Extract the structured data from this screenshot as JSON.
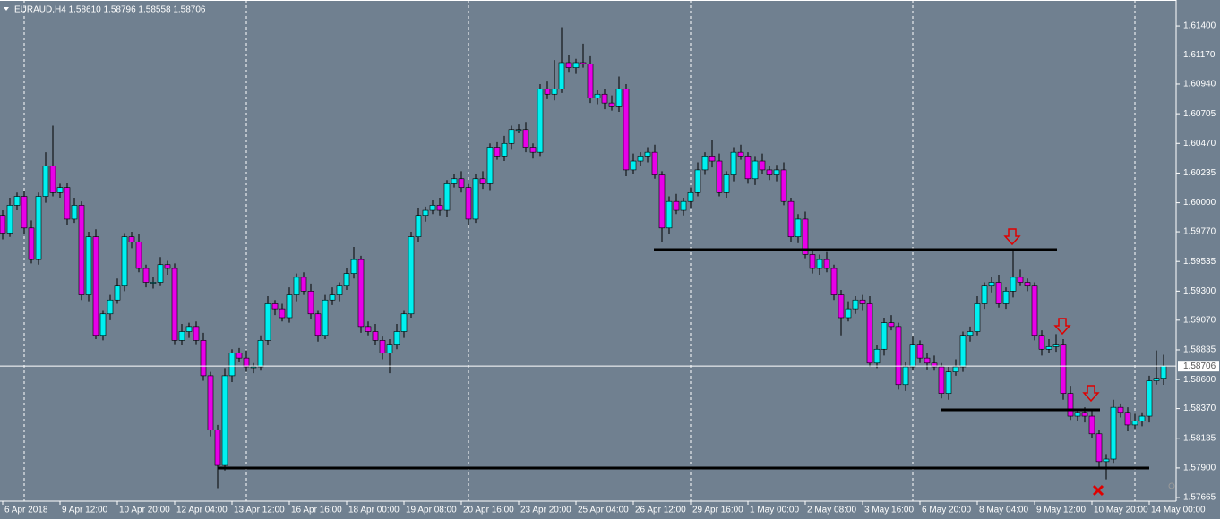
{
  "chart_data": {
    "type": "candlestick",
    "title": "EURAUD,H4  1.58610 1.58796 1.58558 1.58706",
    "up_color": "#00f0f0",
    "down_color": "#e800e8",
    "wick_color": "#000000",
    "ylim": [
      1.57637,
      1.61606
    ],
    "yticks": [
      {
        "value": 1.614,
        "label": "1.61400"
      },
      {
        "value": 1.6117,
        "label": "1.61170"
      },
      {
        "value": 1.6094,
        "label": "1.60940"
      },
      {
        "value": 1.60705,
        "label": "1.60705"
      },
      {
        "value": 1.6047,
        "label": "1.60470"
      },
      {
        "value": 1.60235,
        "label": "1.60235"
      },
      {
        "value": 1.6,
        "label": "1.60000"
      },
      {
        "value": 1.5977,
        "label": "1.59770"
      },
      {
        "value": 1.59535,
        "label": "1.59535"
      },
      {
        "value": 1.593,
        "label": "1.59300"
      },
      {
        "value": 1.5907,
        "label": "1.59070"
      },
      {
        "value": 1.58835,
        "label": "1.58835"
      },
      {
        "value": 1.586,
        "label": "1.58600"
      },
      {
        "value": 1.5837,
        "label": "1.58370"
      },
      {
        "value": 1.58135,
        "label": "1.58135"
      },
      {
        "value": 1.579,
        "label": "1.57900"
      },
      {
        "value": 1.57665,
        "label": "1.57665"
      }
    ],
    "bid": {
      "value": 1.58706,
      "label": "1.58706"
    },
    "categories": [
      "6 Apr 2018",
      null,
      null,
      null,
      null,
      null,
      null,
      null,
      "9 Apr 12:00",
      null,
      null,
      null,
      null,
      null,
      null,
      null,
      "10 Apr 20:00",
      null,
      null,
      null,
      null,
      null,
      null,
      null,
      "12 Apr 04:00",
      null,
      null,
      null,
      null,
      null,
      null,
      null,
      "13 Apr 12:00",
      null,
      null,
      null,
      null,
      null,
      null,
      null,
      "16 Apr 16:00",
      null,
      null,
      null,
      null,
      null,
      null,
      null,
      "18 Apr 00:00",
      null,
      null,
      null,
      null,
      null,
      null,
      null,
      "19 Apr 08:00",
      null,
      null,
      null,
      null,
      null,
      null,
      null,
      "20 Apr 16:00",
      null,
      null,
      null,
      null,
      null,
      null,
      null,
      "23 Apr 20:00",
      null,
      null,
      null,
      null,
      null,
      null,
      null,
      "25 Apr 04:00",
      null,
      null,
      null,
      null,
      null,
      null,
      null,
      "26 Apr 12:00",
      null,
      null,
      null,
      null,
      null,
      null,
      null,
      "29 Apr 16:00",
      null,
      null,
      null,
      null,
      null,
      null,
      null,
      "1 May 00:00",
      null,
      null,
      null,
      null,
      null,
      null,
      null,
      "2 May 08:00",
      null,
      null,
      null,
      null,
      null,
      null,
      null,
      "3 May 16:00",
      null,
      null,
      null,
      null,
      null,
      null,
      null,
      "6 May 20:00",
      null,
      null,
      null,
      null,
      null,
      null,
      null,
      "8 May 04:00",
      null,
      null,
      null,
      null,
      null,
      null,
      null,
      "9 May 12:00",
      null,
      null,
      null,
      null,
      null,
      null,
      null,
      "10 May 20:00",
      null,
      null,
      null,
      null,
      null,
      null,
      null,
      "14 May 00:00",
      null,
      null
    ],
    "open": [
      1.599,
      1.5976,
      1.5998,
      1.6005,
      1.598,
      1.5955,
      1.6005,
      1.6029,
      1.6008,
      1.6012,
      1.5987,
      1.5998,
      1.5927,
      1.5973,
      1.5895,
      1.5912,
      1.5923,
      1.5934,
      1.5973,
      1.5969,
      1.5948,
      1.5937,
      1.5937,
      1.5951,
      1.5948,
      1.5891,
      1.5898,
      1.5902,
      1.5891,
      1.5863,
      1.582,
      1.5792,
      1.5863,
      1.5881,
      1.5877,
      1.587,
      1.587,
      1.5891,
      1.592,
      1.5916,
      1.5909,
      1.5927,
      1.5941,
      1.593,
      1.5912,
      1.5895,
      1.5923,
      1.5927,
      1.5934,
      1.5944,
      1.5955,
      1.5902,
      1.5898,
      1.5891,
      1.5881,
      1.5888,
      1.5898,
      1.5912,
      1.5973,
      1.599,
      1.5994,
      1.5998,
      1.5994,
      1.6015,
      1.6019,
      1.6012,
      1.5987,
      1.6019,
      1.6015,
      1.6044,
      1.6037,
      1.6047,
      1.6058,
      1.6058,
      1.6044,
      1.604,
      1.609,
      1.6086,
      1.609,
      1.6111,
      1.6107,
      1.6111,
      1.611,
      1.6083,
      1.6086,
      1.6079,
      1.6076,
      1.609,
      1.6026,
      1.6033,
      1.6037,
      1.604,
      1.6022,
      1.598,
      1.6001,
      1.5994,
      1.6001,
      1.6008,
      1.6026,
      1.6037,
      1.6033,
      1.6008,
      1.6022,
      1.604,
      1.6037,
      1.6019,
      1.6033,
      1.6026,
      1.6022,
      1.6026,
      1.6001,
      1.5973,
      1.5987,
      1.5959,
      1.5948,
      1.5955,
      1.5948,
      1.5927,
      1.5909,
      1.5916,
      1.5923,
      1.592,
      1.5873,
      1.5884,
      1.5905,
      1.5902,
      1.5856,
      1.587,
      1.5888,
      1.5877,
      1.5873,
      1.587,
      1.5849,
      1.5866,
      1.587,
      1.5895,
      1.5898,
      1.592,
      1.5934,
      1.5937,
      1.592,
      1.593,
      1.5941,
      1.5937,
      1.5934,
      1.5895,
      1.5884,
      1.5886,
      1.5888,
      1.5849,
      1.5831,
      1.5834,
      1.5831,
      1.5817,
      1.5795,
      1.5797,
      1.5838,
      1.5834,
      1.5824,
      1.5827,
      1.5831,
      1.5859,
      1.5861
    ],
    "high": [
      1.5994,
      1.6004,
      1.6008,
      1.6009,
      1.5986,
      1.6008,
      1.604,
      1.6061,
      1.6015,
      1.6016,
      1.6004,
      1.6001,
      1.5977,
      1.5979,
      1.5915,
      1.5927,
      1.594,
      1.5976,
      1.5977,
      1.5975,
      1.5951,
      1.5941,
      1.5957,
      1.5954,
      1.5952,
      1.5904,
      1.5905,
      1.5906,
      1.5897,
      1.5866,
      1.5824,
      1.5869,
      1.5884,
      1.5885,
      1.5883,
      1.5873,
      1.5895,
      1.5926,
      1.5923,
      1.592,
      1.5933,
      1.5944,
      1.5945,
      1.5936,
      1.5915,
      1.5927,
      1.5933,
      1.5937,
      1.5948,
      1.5965,
      1.5958,
      1.5906,
      1.5904,
      1.5894,
      1.5892,
      1.5904,
      1.5915,
      1.5977,
      1.5996,
      1.5997,
      1.6002,
      1.6004,
      1.6018,
      1.6023,
      1.6025,
      1.6015,
      1.6023,
      1.6025,
      1.6047,
      1.6048,
      1.6053,
      1.6061,
      1.6062,
      1.6064,
      1.6047,
      1.6094,
      1.6096,
      1.6113,
      1.6139,
      1.6117,
      1.6114,
      1.6126,
      1.6116,
      1.6089,
      1.609,
      1.6085,
      1.61,
      1.6094,
      1.6039,
      1.604,
      1.6044,
      1.6046,
      1.6025,
      1.6005,
      1.6007,
      1.6004,
      1.6012,
      1.6032,
      1.604,
      1.605,
      1.6039,
      1.6025,
      1.6044,
      1.6046,
      1.604,
      1.6037,
      1.6039,
      1.6029,
      1.603,
      1.6032,
      1.6004,
      1.5991,
      1.5993,
      1.5962,
      1.5959,
      1.5961,
      1.5951,
      1.5931,
      1.5922,
      1.5926,
      1.5927,
      1.5926,
      1.5887,
      1.5909,
      1.5911,
      1.5905,
      1.5874,
      1.5894,
      1.5891,
      1.5881,
      1.5879,
      1.5873,
      1.587,
      1.5876,
      1.5898,
      1.5902,
      1.5926,
      1.5937,
      1.5941,
      1.5943,
      1.5933,
      1.5962,
      1.5947,
      1.594,
      1.5937,
      1.5899,
      1.5892,
      1.5896,
      1.5892,
      1.5855,
      1.5837,
      1.5838,
      1.5837,
      1.582,
      1.5801,
      1.5844,
      1.5841,
      1.5838,
      1.5833,
      1.5834,
      1.5863,
      1.5883,
      1.58796
    ],
    "low": [
      1.5971,
      1.5973,
      1.5994,
      1.5975,
      1.5952,
      1.5951,
      1.6,
      1.6005,
      1.6004,
      1.5982,
      1.5984,
      1.5923,
      1.5922,
      1.5892,
      1.5891,
      1.5907,
      1.592,
      1.593,
      1.5964,
      1.5945,
      1.5933,
      1.5932,
      1.5934,
      1.5943,
      1.5888,
      1.5887,
      1.5893,
      1.5888,
      1.5859,
      1.5815,
      1.5774,
      1.5788,
      1.5858,
      1.5874,
      1.5866,
      1.5865,
      1.5867,
      1.5887,
      1.5911,
      1.5906,
      1.5905,
      1.5922,
      1.5927,
      1.5908,
      1.589,
      1.5892,
      1.5919,
      1.5922,
      1.5931,
      1.594,
      1.5897,
      1.5895,
      1.5887,
      1.5876,
      1.5865,
      1.5884,
      1.5893,
      1.5909,
      1.5969,
      1.5985,
      1.5991,
      1.599,
      1.5989,
      1.6012,
      1.6008,
      1.5982,
      1.5984,
      1.6011,
      1.601,
      1.6034,
      1.6033,
      1.6042,
      1.6055,
      1.604,
      1.6035,
      1.6037,
      1.6082,
      1.6081,
      1.6087,
      1.6103,
      1.6102,
      1.6107,
      1.6079,
      1.6078,
      1.6074,
      1.6073,
      1.6072,
      1.6021,
      1.6023,
      1.6029,
      1.6032,
      1.6019,
      1.5969,
      1.5975,
      1.5991,
      1.599,
      1.5996,
      1.6005,
      1.6022,
      1.6028,
      1.6005,
      1.6004,
      1.6017,
      1.6034,
      1.6015,
      1.6014,
      1.6023,
      1.6018,
      1.6017,
      1.5998,
      1.5969,
      1.5968,
      1.5956,
      1.5944,
      1.5943,
      1.5945,
      1.5923,
      1.5895,
      1.5906,
      1.5912,
      1.5915,
      1.587,
      1.5869,
      1.5879,
      1.5899,
      1.5852,
      1.5851,
      1.5867,
      1.5873,
      1.5868,
      1.5867,
      1.5845,
      1.5844,
      1.5863,
      1.5866,
      1.589,
      1.5895,
      1.5916,
      1.5929,
      1.5917,
      1.5916,
      1.5925,
      1.5934,
      1.593,
      1.5891,
      1.5879,
      1.5881,
      1.5882,
      1.5844,
      1.5828,
      1.5827,
      1.5826,
      1.5814,
      1.5791,
      1.5781,
      1.5794,
      1.583,
      1.5819,
      1.5821,
      1.5823,
      1.5826,
      1.5856,
      1.58558
    ],
    "close": [
      1.5976,
      1.5998,
      1.6005,
      1.598,
      1.5955,
      1.6005,
      1.6029,
      1.6008,
      1.6012,
      1.5987,
      1.5998,
      1.5927,
      1.5973,
      1.5895,
      1.5912,
      1.5923,
      1.5934,
      1.5973,
      1.5969,
      1.5948,
      1.5937,
      1.5937,
      1.5951,
      1.5948,
      1.5891,
      1.5898,
      1.5902,
      1.5891,
      1.5863,
      1.582,
      1.5792,
      1.5863,
      1.5881,
      1.5877,
      1.587,
      1.587,
      1.5891,
      1.592,
      1.5916,
      1.5909,
      1.5927,
      1.5941,
      1.593,
      1.5912,
      1.5895,
      1.5923,
      1.5927,
      1.5934,
      1.5944,
      1.5955,
      1.5902,
      1.5898,
      1.5891,
      1.5881,
      1.5888,
      1.5898,
      1.5912,
      1.5973,
      1.599,
      1.5994,
      1.5998,
      1.5994,
      1.6015,
      1.6019,
      1.6012,
      1.5987,
      1.6019,
      1.6015,
      1.6044,
      1.6037,
      1.6047,
      1.6058,
      1.6058,
      1.6044,
      1.604,
      1.609,
      1.6086,
      1.609,
      1.6111,
      1.6107,
      1.6111,
      1.611,
      1.6083,
      1.6086,
      1.6079,
      1.6076,
      1.609,
      1.6026,
      1.6033,
      1.6037,
      1.604,
      1.6022,
      1.598,
      1.6001,
      1.5994,
      1.6001,
      1.6008,
      1.6026,
      1.6037,
      1.6033,
      1.6008,
      1.6022,
      1.604,
      1.6037,
      1.6019,
      1.6033,
      1.6026,
      1.6022,
      1.6026,
      1.6001,
      1.5973,
      1.5987,
      1.5959,
      1.5948,
      1.5955,
      1.5948,
      1.5927,
      1.5909,
      1.5916,
      1.5923,
      1.592,
      1.5873,
      1.5884,
      1.5905,
      1.5902,
      1.5856,
      1.587,
      1.5888,
      1.5877,
      1.5873,
      1.587,
      1.5849,
      1.5866,
      1.587,
      1.5895,
      1.5898,
      1.592,
      1.5934,
      1.5937,
      1.592,
      1.593,
      1.5941,
      1.5937,
      1.5934,
      1.5895,
      1.5884,
      1.5886,
      1.5888,
      1.5849,
      1.5831,
      1.5834,
      1.5831,
      1.5817,
      1.5795,
      1.5797,
      1.5838,
      1.5834,
      1.5824,
      1.5827,
      1.5831,
      1.5859,
      1.5861,
      1.58706
    ]
  }
}
